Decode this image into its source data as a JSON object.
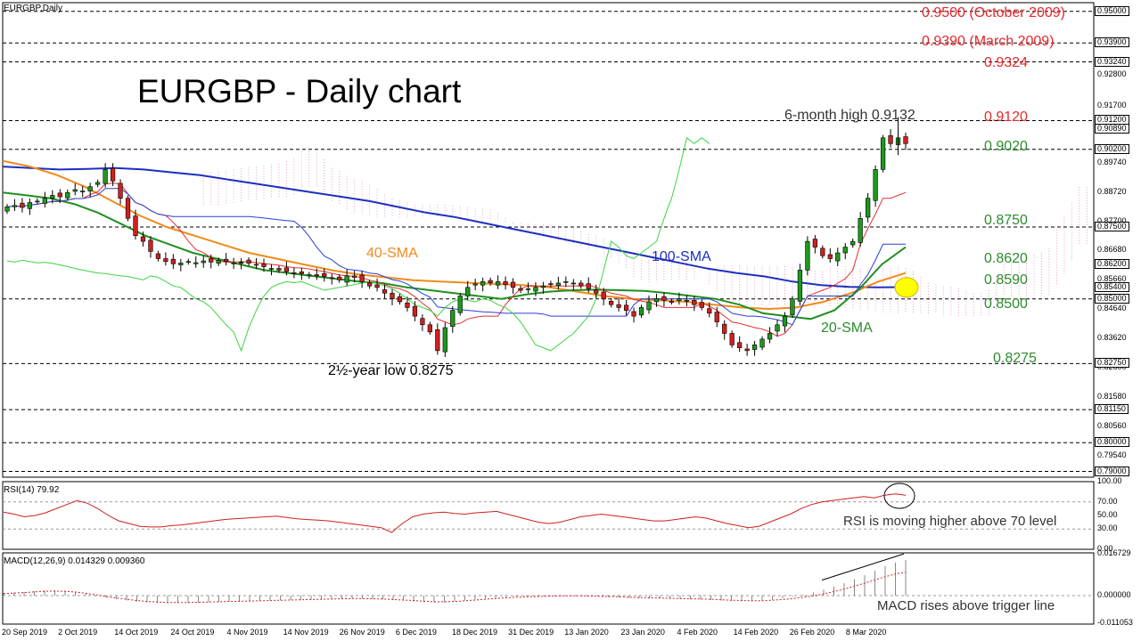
{
  "chart_data": {
    "type": "candlestick",
    "symbol_label": "EURGBP,Daily",
    "title": "EURGBP - Daily chart",
    "x_tick_labels": [
      "20 Sep 2019",
      "2 Oct 2019",
      "14 Oct 2019",
      "24 Oct 2019",
      "4 Nov 2019",
      "14 Nov 2019",
      "26 Nov 2019",
      "6 Dec 2019",
      "18 Dec 2019",
      "31 Dec 2019",
      "13 Jan 2020",
      "23 Jan 2020",
      "4 Feb 2020",
      "14 Feb 2020",
      "26 Feb 2020",
      "8 Mar 2020"
    ],
    "price_axis": {
      "min": 0.788,
      "max": 0.953,
      "ticks": [
        "0.92800",
        "0.91700",
        "0.89740",
        "0.88720",
        "0.87700",
        "0.86680",
        "0.85660",
        "0.84640",
        "0.83620",
        "0.82600",
        "0.81580",
        "0.80560",
        "0.79540"
      ],
      "boxed_ticks": [
        "0.95000",
        "0.93900",
        "0.93240",
        "0.91200",
        "0.90890",
        "0.90200",
        "0.87500",
        "0.86200",
        "0.85400",
        "0.85000",
        "0.82750",
        "0.81150",
        "0.80000",
        "0.79000"
      ],
      "horizontal_levels": [
        0.95,
        0.939,
        0.9324,
        0.912,
        0.902,
        0.875,
        0.85,
        0.8275,
        0.8115,
        0.8,
        0.79
      ]
    },
    "closes": [
      0.882,
      0.8825,
      0.8818,
      0.8835,
      0.884,
      0.885,
      0.886,
      0.8855,
      0.887,
      0.888,
      0.8875,
      0.889,
      0.8905,
      0.895,
      0.891,
      0.885,
      0.878,
      0.872,
      0.87,
      0.8665,
      0.864,
      0.863,
      0.8622,
      0.8625,
      0.863,
      0.8626,
      0.8632,
      0.8628,
      0.8634,
      0.863,
      0.8625,
      0.8627,
      0.8624,
      0.8618,
      0.8612,
      0.8606,
      0.86,
      0.8595,
      0.859,
      0.8588,
      0.8584,
      0.858,
      0.8578,
      0.8572,
      0.8566,
      0.858,
      0.8575,
      0.856,
      0.8545,
      0.854,
      0.852,
      0.85,
      0.849,
      0.847,
      0.844,
      0.841,
      0.8385,
      0.832,
      0.84,
      0.846,
      0.851,
      0.854,
      0.8552,
      0.856,
      0.8556,
      0.856,
      0.855,
      0.854,
      0.853,
      0.8535,
      0.854,
      0.8545,
      0.855,
      0.8555,
      0.856,
      0.8555,
      0.8545,
      0.8535,
      0.852,
      0.85,
      0.848,
      0.847,
      0.846,
      0.844,
      0.847,
      0.849,
      0.85,
      0.8495,
      0.849,
      0.85,
      0.8495,
      0.848,
      0.847,
      0.845,
      0.842,
      0.838,
      0.834,
      0.833,
      0.832,
      0.834,
      0.836,
      0.838,
      0.841,
      0.844,
      0.85,
      0.86,
      0.87,
      0.868,
      0.865,
      0.864,
      0.866,
      0.868,
      0.87,
      0.878,
      0.885,
      0.895,
      0.906,
      0.904,
      0.906,
      0.904
    ],
    "sma20": [
      0.887,
      0.886,
      0.885,
      0.883,
      0.88,
      0.876,
      0.872,
      0.869,
      0.866,
      0.864,
      0.862,
      0.86,
      0.859,
      0.858,
      0.857,
      0.856,
      0.8555,
      0.854,
      0.853,
      0.852,
      0.851,
      0.85,
      0.8515,
      0.8525,
      0.853,
      0.8532,
      0.853,
      0.8528,
      0.852,
      0.851,
      0.85,
      0.848,
      0.845,
      0.844,
      0.843,
      0.846,
      0.853,
      0.862,
      0.868
    ],
    "sma40": [
      0.898,
      0.896,
      0.893,
      0.889,
      0.884,
      0.879,
      0.875,
      0.872,
      0.869,
      0.866,
      0.864,
      0.862,
      0.86,
      0.8585,
      0.8575,
      0.8565,
      0.856,
      0.8556,
      0.8552,
      0.8548,
      0.854,
      0.8525,
      0.851,
      0.85,
      0.8495,
      0.849,
      0.848,
      0.847,
      0.8465,
      0.847,
      0.849,
      0.852,
      0.856,
      0.859
    ],
    "sma100": [
      0.896,
      0.8955,
      0.895,
      0.8952,
      0.8955,
      0.895,
      0.894,
      0.893,
      0.8915,
      0.89,
      0.8885,
      0.887,
      0.8855,
      0.884,
      0.882,
      0.88,
      0.8785,
      0.8765,
      0.8745,
      0.8725,
      0.8705,
      0.8685,
      0.8665,
      0.8645,
      0.8625,
      0.8605,
      0.859,
      0.8578,
      0.856,
      0.8548,
      0.8542,
      0.854,
      0.8541
    ],
    "rsi": {
      "label": "RSI(14) 79.92",
      "ticks": [
        "100.00",
        "70.00",
        "50.00",
        "30.00",
        "0.00"
      ],
      "levels": [
        70,
        30
      ],
      "values": [
        55,
        52,
        48,
        50,
        54,
        60,
        66,
        72,
        68,
        60,
        50,
        42,
        38,
        34,
        33,
        33,
        35,
        36,
        38,
        40,
        42,
        44,
        45,
        46,
        47,
        48,
        49,
        47,
        45,
        44,
        43,
        42,
        40,
        38,
        36,
        34,
        32,
        25,
        38,
        48,
        52,
        54,
        55,
        53,
        52,
        54,
        55,
        56,
        52,
        48,
        44,
        40,
        38,
        40,
        44,
        48,
        50,
        52,
        50,
        48,
        46,
        44,
        42,
        42,
        44,
        46,
        48,
        46,
        42,
        38,
        35,
        32,
        34,
        40,
        46,
        52,
        60,
        66,
        70,
        72,
        74,
        76,
        78,
        76,
        80,
        82,
        80
      ]
    },
    "macd": {
      "label": "MACD(12,26,9) 0.014329 0.009360",
      "ticks": [
        "0.016729",
        "0.000000",
        "-0.011053"
      ],
      "range": [
        -0.0115,
        0.0172
      ],
      "histogram": [
        0.001,
        0.0012,
        0.0015,
        0.0018,
        0.0021,
        0.0022,
        0.002,
        0.0015,
        0.0008,
        0.0,
        -0.0008,
        -0.0015,
        -0.002,
        -0.0025,
        -0.0028,
        -0.003,
        -0.0031,
        -0.003,
        -0.0029,
        -0.0028,
        -0.0027,
        -0.0026,
        -0.0025,
        -0.0024,
        -0.0022,
        -0.0021,
        -0.002,
        -0.0019,
        -0.0018,
        -0.0017,
        -0.0016,
        -0.0015,
        -0.0014,
        -0.0012,
        -0.0011,
        -0.0012,
        -0.0014,
        -0.0016,
        -0.0018,
        -0.0021,
        -0.0024,
        -0.0027,
        -0.0028,
        -0.0027,
        -0.0024,
        -0.002,
        -0.0016,
        -0.0012,
        -0.0009,
        -0.0006,
        -0.0004,
        -0.0003,
        -0.0002,
        -0.0001,
        0.0,
        0.0,
        -0.0001,
        -0.0002,
        -0.0003,
        -0.0005,
        -0.0007,
        -0.0009,
        -0.001,
        -0.0011,
        -0.0012,
        -0.0013,
        -0.0014,
        -0.0015,
        -0.0016,
        -0.0018,
        -0.002,
        -0.0022,
        -0.0023,
        -0.0023,
        -0.0021,
        -0.0017,
        -0.0011,
        -0.0004,
        0.0004,
        0.0013,
        0.0024,
        0.0036,
        0.005,
        0.0066,
        0.0082,
        0.01,
        0.0118,
        0.0133,
        0.0143
      ],
      "signal": [
        0.0008,
        0.001,
        0.0012,
        0.0015,
        0.0017,
        0.0018,
        0.0017,
        0.0014,
        0.0009,
        0.0003,
        -0.0004,
        -0.001,
        -0.0015,
        -0.002,
        -0.0024,
        -0.0026,
        -0.0028,
        -0.0028,
        -0.0028,
        -0.0027,
        -0.0026,
        -0.0025,
        -0.0024,
        -0.0023,
        -0.0022,
        -0.0021,
        -0.002,
        -0.0019,
        -0.0018,
        -0.0017,
        -0.0016,
        -0.0015,
        -0.0014,
        -0.0013,
        -0.0012,
        -0.0012,
        -0.0013,
        -0.0014,
        -0.0016,
        -0.0018,
        -0.002,
        -0.0023,
        -0.0025,
        -0.0025,
        -0.0024,
        -0.0021,
        -0.0018,
        -0.0015,
        -0.0012,
        -0.0009,
        -0.0007,
        -0.0005,
        -0.0004,
        -0.0003,
        -0.0002,
        -0.0001,
        -0.0001,
        -0.0002,
        -0.0003,
        -0.0004,
        -0.0005,
        -0.0007,
        -0.0008,
        -0.0009,
        -0.001,
        -0.0011,
        -0.0012,
        -0.0013,
        -0.0014,
        -0.0015,
        -0.0017,
        -0.0019,
        -0.002,
        -0.0021,
        -0.0021,
        -0.0019,
        -0.0016,
        -0.0012,
        -0.0007,
        -0.0001,
        0.0007,
        0.0016,
        0.0026,
        0.0038,
        0.005,
        0.0063,
        0.0076,
        0.0087,
        0.0094
      ]
    }
  },
  "labels": {
    "symbol": "EURGBP,Daily",
    "title": "EURGBP - Daily chart",
    "six_month_high": "6-month high 0.9132",
    "low_note": "2½-year low 0.8275",
    "sma40": "40-SMA",
    "sma100": "100-SMA",
    "sma20": "20-SMA",
    "rsi_label": "RSI(14) 79.92",
    "rsi_note": "RSI is moving higher above 70 level",
    "macd_label": "MACD(12,26,9) 0.014329 0.009360",
    "macd_note": "MACD rises above trigger line"
  },
  "levels_text": {
    "l9500": "0.9500 (October 2009)",
    "l9390": "0.9390 (March 2009)",
    "l9324": "0.9324",
    "l9120": "0.9120",
    "l9020": "0.9020",
    "l8750": "0.8750",
    "l8620": "0.8620",
    "l8590": "0.8590",
    "l8500": "0.8500",
    "l8275": "0.8275"
  },
  "colors": {
    "red_level": "#e8262b",
    "green_level": "#2e8b2e",
    "sma20": "#1f8f1f",
    "sma40": "#f08a1a",
    "sma100": "#1c2fbf",
    "tenkan": "#e33030",
    "kijun": "#2a3fd6",
    "chikou": "#3fd43f",
    "cloud": "#e05ab0",
    "bull": "#1c9a1c",
    "bear": "#d11f1f",
    "highlight": "#ffff00"
  }
}
